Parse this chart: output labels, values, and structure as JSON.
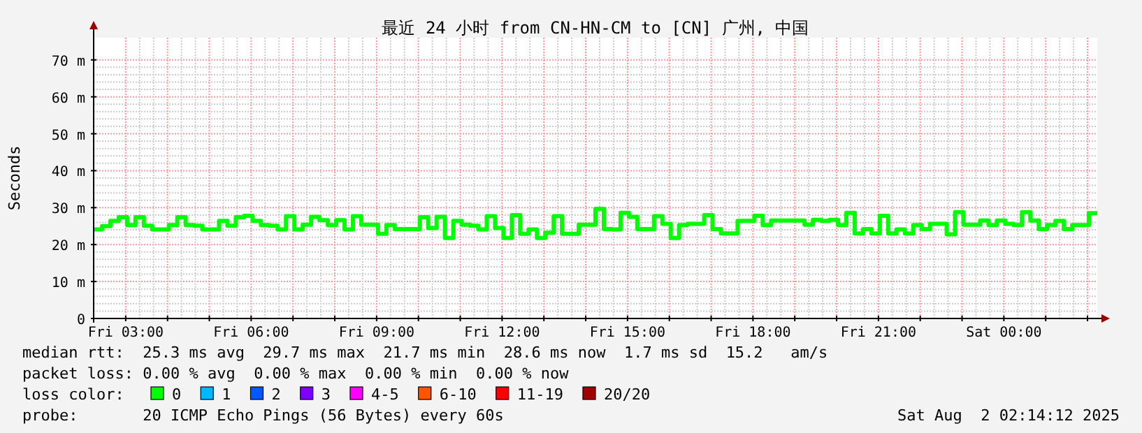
{
  "chart_data": {
    "type": "step",
    "title": "最近 24 小时 from CN-HN-CM to [CN] 广州, 中国",
    "ylabel": "Seconds",
    "x": [
      "2025-08-01T02:14",
      "2025-08-01T02:26",
      "2025-08-01T02:38",
      "2025-08-01T02:50",
      "2025-08-01T03:02",
      "2025-08-01T03:14",
      "2025-08-01T03:26",
      "2025-08-01T03:38",
      "2025-08-01T03:50",
      "2025-08-01T04:02",
      "2025-08-01T04:14",
      "2025-08-01T04:26",
      "2025-08-01T04:38",
      "2025-08-01T04:50",
      "2025-08-01T05:02",
      "2025-08-01T05:14",
      "2025-08-01T05:26",
      "2025-08-01T05:38",
      "2025-08-01T05:50",
      "2025-08-01T06:02",
      "2025-08-01T06:14",
      "2025-08-01T06:26",
      "2025-08-01T06:38",
      "2025-08-01T06:50",
      "2025-08-01T07:02",
      "2025-08-01T07:14",
      "2025-08-01T07:26",
      "2025-08-01T07:38",
      "2025-08-01T07:50",
      "2025-08-01T08:02",
      "2025-08-01T08:14",
      "2025-08-01T08:26",
      "2025-08-01T08:38",
      "2025-08-01T08:50",
      "2025-08-01T09:02",
      "2025-08-01T09:14",
      "2025-08-01T09:26",
      "2025-08-01T09:38",
      "2025-08-01T09:50",
      "2025-08-01T10:02",
      "2025-08-01T10:14",
      "2025-08-01T10:26",
      "2025-08-01T10:38",
      "2025-08-01T10:50",
      "2025-08-01T11:02",
      "2025-08-01T11:14",
      "2025-08-01T11:26",
      "2025-08-01T11:38",
      "2025-08-01T11:50",
      "2025-08-01T12:02",
      "2025-08-01T12:14",
      "2025-08-01T12:26",
      "2025-08-01T12:38",
      "2025-08-01T12:50",
      "2025-08-01T13:02",
      "2025-08-01T13:14",
      "2025-08-01T13:26",
      "2025-08-01T13:38",
      "2025-08-01T13:50",
      "2025-08-01T14:02",
      "2025-08-01T14:14",
      "2025-08-01T14:26",
      "2025-08-01T14:38",
      "2025-08-01T14:50",
      "2025-08-01T15:02",
      "2025-08-01T15:14",
      "2025-08-01T15:26",
      "2025-08-01T15:38",
      "2025-08-01T15:50",
      "2025-08-01T16:02",
      "2025-08-01T16:14",
      "2025-08-01T16:26",
      "2025-08-01T16:38",
      "2025-08-01T16:50",
      "2025-08-01T17:02",
      "2025-08-01T17:14",
      "2025-08-01T17:26",
      "2025-08-01T17:38",
      "2025-08-01T17:50",
      "2025-08-01T18:02",
      "2025-08-01T18:14",
      "2025-08-01T18:26",
      "2025-08-01T18:38",
      "2025-08-01T18:50",
      "2025-08-01T19:02",
      "2025-08-01T19:14",
      "2025-08-01T19:26",
      "2025-08-01T19:38",
      "2025-08-01T19:50",
      "2025-08-01T20:02",
      "2025-08-01T20:14",
      "2025-08-01T20:26",
      "2025-08-01T20:38",
      "2025-08-01T20:50",
      "2025-08-01T21:02",
      "2025-08-01T21:14",
      "2025-08-01T21:26",
      "2025-08-01T21:38",
      "2025-08-01T21:50",
      "2025-08-01T22:02",
      "2025-08-01T22:14",
      "2025-08-01T22:26",
      "2025-08-01T22:38",
      "2025-08-01T22:50",
      "2025-08-01T23:02",
      "2025-08-01T23:14",
      "2025-08-01T23:26",
      "2025-08-01T23:38",
      "2025-08-01T23:50",
      "2025-08-02T00:02",
      "2025-08-02T00:14",
      "2025-08-02T00:26",
      "2025-08-02T00:38",
      "2025-08-02T00:50",
      "2025-08-02T01:02",
      "2025-08-02T01:14",
      "2025-08-02T01:26",
      "2025-08-02T01:38",
      "2025-08-02T01:50",
      "2025-08-02T02:02",
      "2025-08-02T02:14"
    ],
    "series": [
      {
        "name": "0",
        "color": "#00ff00",
        "values": [
          24.1,
          25.0,
          26.4,
          27.4,
          25.3,
          27.4,
          25.1,
          24.1,
          24.1,
          25.3,
          27.4,
          25.3,
          25.1,
          24.1,
          24.1,
          26.4,
          25.1,
          27.4,
          27.8,
          26.4,
          25.3,
          25.1,
          24.1,
          27.7,
          24.1,
          25.4,
          27.5,
          26.6,
          25.3,
          26.6,
          24.1,
          27.7,
          25.4,
          25.4,
          22.9,
          25.3,
          24.2,
          24.2,
          24.2,
          27.4,
          24.5,
          27.5,
          21.8,
          26.4,
          25.4,
          25.1,
          24.1,
          27.7,
          24.5,
          21.8,
          28.0,
          22.9,
          24.1,
          21.8,
          23.2,
          27.7,
          22.9,
          22.9,
          25.4,
          25.4,
          29.7,
          24.2,
          24.1,
          28.6,
          27.5,
          24.2,
          24.2,
          27.7,
          25.6,
          21.8,
          25.3,
          25.6,
          25.6,
          28.0,
          24.2,
          23.0,
          23.0,
          26.4,
          26.4,
          27.8,
          25.3,
          26.5,
          26.5,
          26.5,
          26.5,
          25.4,
          26.7,
          26.4,
          26.7,
          25.3,
          28.6,
          23.0,
          24.2,
          23.0,
          27.8,
          23.0,
          24.1,
          23.0,
          25.3,
          24.2,
          25.6,
          25.6,
          22.8,
          28.8,
          25.4,
          25.4,
          26.5,
          25.3,
          26.5,
          25.6,
          25.3,
          28.8,
          26.5,
          24.2,
          25.3,
          26.4,
          24.2,
          25.3,
          25.3,
          28.5,
          28.5
        ]
      },
      {
        "name": "1",
        "color": "#00b8ff",
        "values": [
          null,
          null,
          null,
          null,
          null,
          null,
          null,
          null,
          null,
          null,
          null,
          null,
          null,
          null,
          null,
          null,
          null,
          null,
          null,
          null,
          null,
          null,
          null,
          null,
          null,
          null,
          null,
          null,
          null,
          null,
          null,
          null,
          null,
          null,
          null,
          null,
          null,
          null,
          null,
          null,
          null,
          null,
          null,
          null,
          null,
          null,
          null,
          null,
          null,
          null,
          null,
          null,
          null,
          null,
          null,
          null,
          null,
          null,
          null,
          null,
          null,
          null,
          null,
          null,
          null,
          null,
          null,
          null,
          null,
          null,
          null,
          null,
          null,
          null,
          null,
          null,
          null,
          null,
          null,
          null,
          null,
          null,
          null,
          null,
          null,
          null,
          null,
          null,
          null,
          null,
          null,
          null,
          null,
          null,
          null,
          null,
          null,
          null,
          null,
          null,
          null,
          null,
          null,
          null,
          null,
          null,
          null,
          null,
          null,
          null,
          null,
          null,
          null,
          null,
          null,
          null,
          null,
          null,
          null,
          null,
          null
        ]
      },
      {
        "name": "2",
        "color": "#0059ff",
        "values": [
          null,
          null,
          null,
          null,
          null,
          null,
          null,
          null,
          null,
          null,
          null,
          null,
          null,
          null,
          null,
          null,
          null,
          null,
          null,
          null,
          null,
          null,
          null,
          null,
          null,
          null,
          null,
          null,
          null,
          null,
          null,
          null,
          null,
          null,
          null,
          null,
          null,
          null,
          null,
          null,
          null,
          null,
          null,
          null,
          null,
          null,
          null,
          null,
          null,
          null,
          null,
          null,
          null,
          null,
          null,
          null,
          null,
          null,
          null,
          null,
          null,
          null,
          null,
          null,
          null,
          null,
          null,
          null,
          null,
          null,
          null,
          null,
          null,
          null,
          null,
          null,
          null,
          null,
          null,
          null,
          null,
          null,
          null,
          null,
          null,
          null,
          null,
          null,
          null,
          null,
          null,
          null,
          null,
          null,
          null,
          null,
          null,
          null,
          null,
          null,
          null,
          null,
          null,
          null,
          null,
          null,
          null,
          null,
          null,
          null,
          null,
          null,
          null,
          null,
          null,
          null,
          null,
          null,
          null,
          null,
          null
        ]
      },
      {
        "name": "3",
        "color": "#7e00ff",
        "values": [
          null,
          null,
          null,
          null,
          null,
          null,
          null,
          null,
          null,
          null,
          null,
          null,
          null,
          null,
          null,
          null,
          null,
          null,
          null,
          null,
          null,
          null,
          null,
          null,
          null,
          null,
          null,
          null,
          null,
          null,
          null,
          null,
          null,
          null,
          null,
          null,
          null,
          null,
          null,
          null,
          null,
          null,
          null,
          null,
          null,
          null,
          null,
          null,
          null,
          null,
          null,
          null,
          null,
          null,
          null,
          null,
          null,
          null,
          null,
          null,
          null,
          null,
          null,
          null,
          null,
          null,
          null,
          null,
          null,
          null,
          null,
          null,
          null,
          null,
          null,
          null,
          null,
          null,
          null,
          null,
          null,
          null,
          null,
          null,
          null,
          null,
          null,
          null,
          null,
          null,
          null,
          null,
          null,
          null,
          null,
          null,
          null,
          null,
          null,
          null,
          null,
          null,
          null,
          null,
          null,
          null,
          null,
          null,
          null,
          null,
          null,
          null,
          null,
          null,
          null,
          null,
          null,
          null,
          null,
          null,
          null
        ]
      },
      {
        "name": "4-5",
        "color": "#ff00ff",
        "values": [
          null,
          null,
          null,
          null,
          null,
          null,
          null,
          null,
          null,
          null,
          null,
          null,
          null,
          null,
          null,
          null,
          null,
          null,
          null,
          null,
          null,
          null,
          null,
          null,
          null,
          null,
          null,
          null,
          null,
          null,
          null,
          null,
          null,
          null,
          null,
          null,
          null,
          null,
          null,
          null,
          null,
          null,
          null,
          null,
          null,
          null,
          null,
          null,
          null,
          null,
          null,
          null,
          null,
          null,
          null,
          null,
          null,
          null,
          null,
          null,
          null,
          null,
          null,
          null,
          null,
          null,
          null,
          null,
          null,
          null,
          null,
          null,
          null,
          null,
          null,
          null,
          null,
          null,
          null,
          null,
          null,
          null,
          null,
          null,
          null,
          null,
          null,
          null,
          null,
          null,
          null,
          null,
          null,
          null,
          null,
          null,
          null,
          null,
          null,
          null,
          null,
          null,
          null,
          null,
          null,
          null,
          null,
          null,
          null,
          null,
          null,
          null,
          null,
          null,
          null,
          null,
          null,
          null,
          null,
          null,
          null
        ]
      },
      {
        "name": "6-10",
        "color": "#ff5500",
        "values": [
          null,
          null,
          null,
          null,
          null,
          null,
          null,
          null,
          null,
          null,
          null,
          null,
          null,
          null,
          null,
          null,
          null,
          null,
          null,
          null,
          null,
          null,
          null,
          null,
          null,
          null,
          null,
          null,
          null,
          null,
          null,
          null,
          null,
          null,
          null,
          null,
          null,
          null,
          null,
          null,
          null,
          null,
          null,
          null,
          null,
          null,
          null,
          null,
          null,
          null,
          null,
          null,
          null,
          null,
          null,
          null,
          null,
          null,
          null,
          null,
          null,
          null,
          null,
          null,
          null,
          null,
          null,
          null,
          null,
          null,
          null,
          null,
          null,
          null,
          null,
          null,
          null,
          null,
          null,
          null,
          null,
          null,
          null,
          null,
          null,
          null,
          null,
          null,
          null,
          null,
          null,
          null,
          null,
          null,
          null,
          null,
          null,
          null,
          null,
          null,
          null,
          null,
          null,
          null,
          null,
          null,
          null,
          null,
          null,
          null,
          null,
          null,
          null,
          null,
          null,
          null,
          null,
          null,
          null,
          null,
          null
        ]
      },
      {
        "name": "11-19",
        "color": "#ff0000",
        "values": [
          null,
          null,
          null,
          null,
          null,
          null,
          null,
          null,
          null,
          null,
          null,
          null,
          null,
          null,
          null,
          null,
          null,
          null,
          null,
          null,
          null,
          null,
          null,
          null,
          null,
          null,
          null,
          null,
          null,
          null,
          null,
          null,
          null,
          null,
          null,
          null,
          null,
          null,
          null,
          null,
          null,
          null,
          null,
          null,
          null,
          null,
          null,
          null,
          null,
          null,
          null,
          null,
          null,
          null,
          null,
          null,
          null,
          null,
          null,
          null,
          null,
          null,
          null,
          null,
          null,
          null,
          null,
          null,
          null,
          null,
          null,
          null,
          null,
          null,
          null,
          null,
          null,
          null,
          null,
          null,
          null,
          null,
          null,
          null,
          null,
          null,
          null,
          null,
          null,
          null,
          null,
          null,
          null,
          null,
          null,
          null,
          null,
          null,
          null,
          null,
          null,
          null,
          null,
          null,
          null,
          null,
          null,
          null,
          null,
          null,
          null,
          null,
          null,
          null,
          null,
          null,
          null,
          null,
          null,
          null,
          null
        ]
      },
      {
        "name": "20/20",
        "color": "#a10000",
        "values": [
          null,
          null,
          null,
          null,
          null,
          null,
          null,
          null,
          null,
          null,
          null,
          null,
          null,
          null,
          null,
          null,
          null,
          null,
          null,
          null,
          null,
          null,
          null,
          null,
          null,
          null,
          null,
          null,
          null,
          null,
          null,
          null,
          null,
          null,
          null,
          null,
          null,
          null,
          null,
          null,
          null,
          null,
          null,
          null,
          null,
          null,
          null,
          null,
          null,
          null,
          null,
          null,
          null,
          null,
          null,
          null,
          null,
          null,
          null,
          null,
          null,
          null,
          null,
          null,
          null,
          null,
          null,
          null,
          null,
          null,
          null,
          null,
          null,
          null,
          null,
          null,
          null,
          null,
          null,
          null,
          null,
          null,
          null,
          null,
          null,
          null,
          null,
          null,
          null,
          null,
          null,
          null,
          null,
          null,
          null,
          null,
          null,
          null,
          null,
          null,
          null,
          null,
          null,
          null,
          null,
          null,
          null,
          null,
          null,
          null,
          null,
          null,
          null,
          null,
          null,
          null,
          null,
          null,
          null,
          null,
          null
        ]
      }
    ],
    "legend": "bottom",
    "legend_title": "loss color:",
    "grid": true,
    "xlim": [
      "2025-08-01T02:14",
      "2025-08-02T02:14"
    ],
    "xticks": [
      {
        "value": "2025-08-01T03:00",
        "label": "Fri 03:00"
      },
      {
        "value": "2025-08-01T04:00",
        "label": null
      },
      {
        "value": "2025-08-01T05:00",
        "label": null
      },
      {
        "value": "2025-08-01T06:00",
        "label": "Fri 06:00"
      },
      {
        "value": "2025-08-01T07:00",
        "label": null
      },
      {
        "value": "2025-08-01T08:00",
        "label": null
      },
      {
        "value": "2025-08-01T09:00",
        "label": "Fri 09:00"
      },
      {
        "value": "2025-08-01T10:00",
        "label": null
      },
      {
        "value": "2025-08-01T11:00",
        "label": null
      },
      {
        "value": "2025-08-01T12:00",
        "label": "Fri 12:00"
      },
      {
        "value": "2025-08-01T13:00",
        "label": null
      },
      {
        "value": "2025-08-01T14:00",
        "label": null
      },
      {
        "value": "2025-08-01T15:00",
        "label": "Fri 15:00"
      },
      {
        "value": "2025-08-01T16:00",
        "label": null
      },
      {
        "value": "2025-08-01T17:00",
        "label": null
      },
      {
        "value": "2025-08-01T18:00",
        "label": "Fri 18:00"
      },
      {
        "value": "2025-08-01T19:00",
        "label": null
      },
      {
        "value": "2025-08-01T20:00",
        "label": null
      },
      {
        "value": "2025-08-01T21:00",
        "label": "Fri 21:00"
      },
      {
        "value": "2025-08-01T22:00",
        "label": null
      },
      {
        "value": "2025-08-01T23:00",
        "label": null
      },
      {
        "value": "2025-08-02T00:00",
        "label": "Sat 00:00"
      },
      {
        "value": "2025-08-02T01:00",
        "label": null
      },
      {
        "value": "2025-08-02T02:00",
        "label": null
      }
    ],
    "ylim": [
      0,
      76
    ],
    "yticks": [
      0,
      {
        "value": 10,
        "label": "10 m"
      },
      {
        "value": 20,
        "label": "20 m"
      },
      {
        "value": 30,
        "label": "30 m"
      },
      {
        "value": 40,
        "label": "40 m"
      },
      {
        "value": 50,
        "label": "50 m"
      },
      {
        "value": 60,
        "label": "60 m"
      },
      {
        "value": 70,
        "label": "70 m"
      }
    ],
    "annotations": [
      "median rtt:  25.3 ms avg  29.7 ms max  21.7 ms min  28.6 ms now  1.7 ms sd  15.2   am/s",
      "packet loss: 0.00 % avg  0.00 % max  0.00 % min  0.00 % now",
      "probe:       20 ICMP Echo Pings (56 Bytes) every 60s",
      "Sat Aug  2 02:14:12 2025"
    ]
  }
}
